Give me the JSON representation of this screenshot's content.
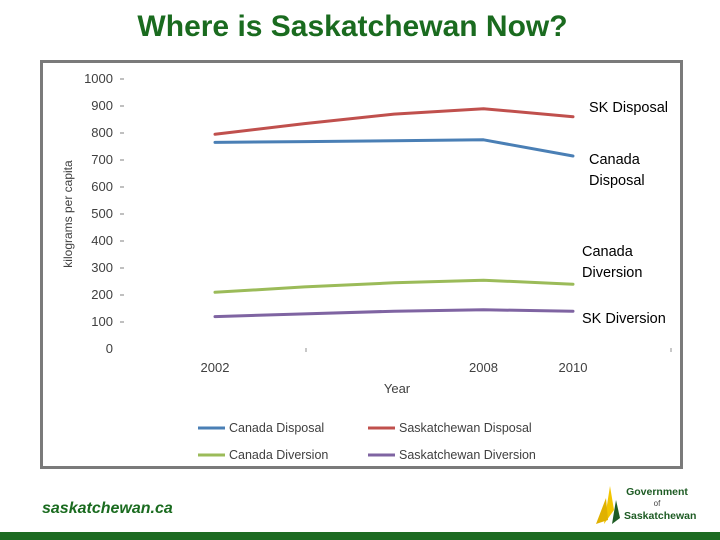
{
  "slide": {
    "title": "Where is Saskatchewan Now?",
    "footer_site": "saskatchewan.ca",
    "logo": {
      "line1": "Government",
      "line2": "of",
      "line3": "Saskatchewan",
      "colors": {
        "green": "#1d5b23",
        "yellow": "#f2c500"
      }
    }
  },
  "chart_data": {
    "type": "line",
    "xlabel": "Year",
    "ylabel": "kilograms per capita",
    "ylim": [
      0,
      1000
    ],
    "xlim": [
      2002,
      2010
    ],
    "yticks": [
      0,
      100,
      200,
      300,
      400,
      500,
      600,
      700,
      800,
      900,
      1000
    ],
    "xticks": [
      2002,
      2008,
      2010
    ],
    "grid": false,
    "legend_position": "bottom",
    "series": [
      {
        "name": "Canada Disposal",
        "color": "#4a7fb5",
        "x": [
          2002,
          2004,
          2006,
          2008,
          2010
        ],
        "y": [
          765,
          768,
          771,
          775,
          715
        ]
      },
      {
        "name": "Saskatchewan Disposal",
        "color": "#c0504d",
        "x": [
          2002,
          2004,
          2006,
          2008,
          2010
        ],
        "y": [
          795,
          835,
          870,
          890,
          860
        ]
      },
      {
        "name": "Canada Diversion",
        "color": "#9bbb59",
        "x": [
          2002,
          2004,
          2006,
          2008,
          2010
        ],
        "y": [
          210,
          230,
          245,
          255,
          240
        ]
      },
      {
        "name": "Saskatchewan Diversion",
        "color": "#7f64a2",
        "x": [
          2002,
          2004,
          2006,
          2008,
          2010
        ],
        "y": [
          120,
          130,
          140,
          145,
          140
        ]
      }
    ],
    "annotations": [
      {
        "text": [
          "SK Disposal"
        ],
        "series": "Saskatchewan Disposal"
      },
      {
        "text": [
          "Canada",
          "Disposal"
        ],
        "series": "Canada Disposal"
      },
      {
        "text": [
          "Canada",
          "Diversion"
        ],
        "series": "Canada Diversion"
      },
      {
        "text": [
          "SK Diversion"
        ],
        "series": "Saskatchewan Diversion"
      }
    ]
  }
}
